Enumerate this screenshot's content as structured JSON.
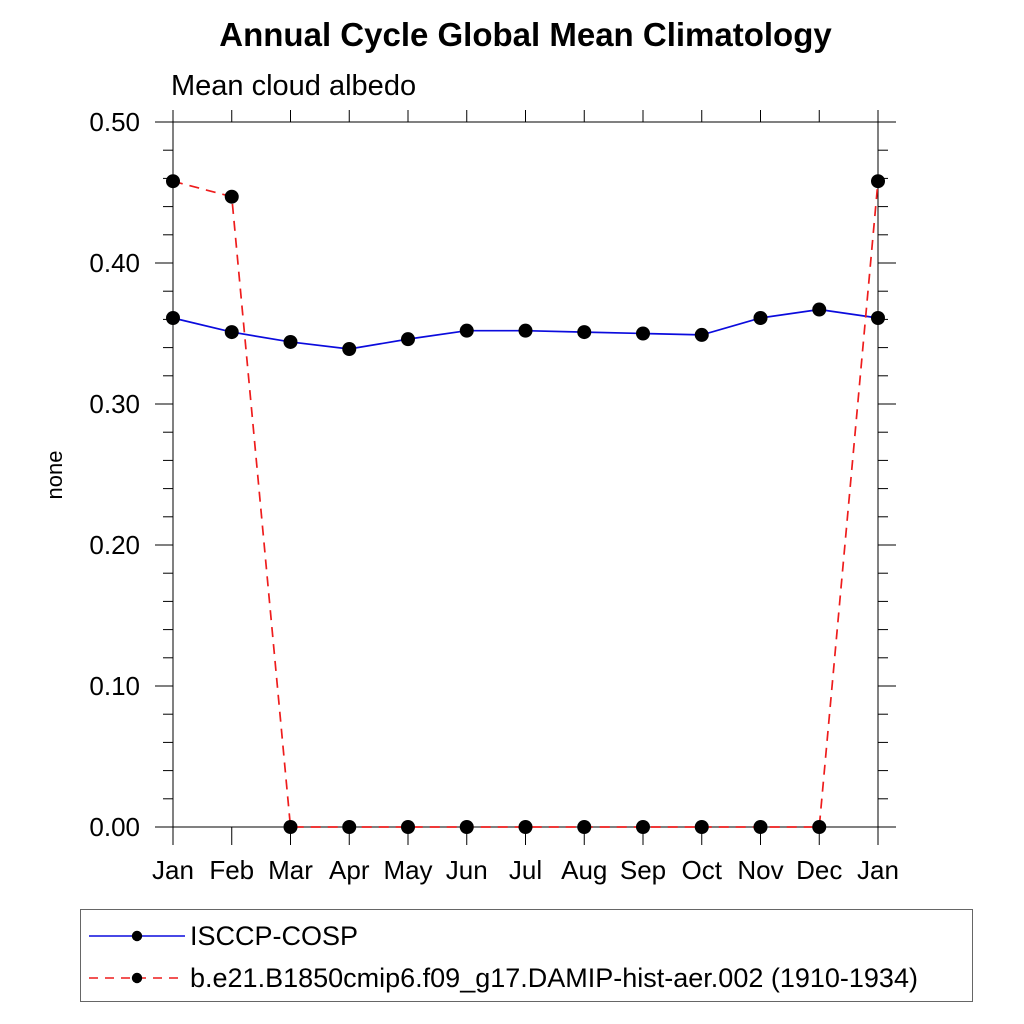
{
  "chart_data": {
    "type": "line",
    "title": "Annual Cycle Global Mean Climatology",
    "subtitle": "Mean cloud albedo",
    "ylabel": "none",
    "xlabel": "",
    "categories": [
      "Jan",
      "Feb",
      "Mar",
      "Apr",
      "May",
      "Jun",
      "Jul",
      "Aug",
      "Sep",
      "Oct",
      "Nov",
      "Dec",
      "Jan"
    ],
    "ylim": [
      0.0,
      0.5
    ],
    "ytick_major": [
      0.0,
      0.1,
      0.2,
      0.3,
      0.4,
      0.5
    ],
    "ytick_labels": [
      "0.00",
      "0.10",
      "0.20",
      "0.30",
      "0.40",
      "0.50"
    ],
    "ytick_minor_step": 0.02,
    "grid": false,
    "legend_position": "bottom-left",
    "series": [
      {
        "name": "ISCCP-COSP",
        "color": "#0b0bdd",
        "style": "solid",
        "marker": "circle",
        "marker_color": "#000000",
        "values": [
          0.361,
          0.351,
          0.344,
          0.339,
          0.346,
          0.352,
          0.352,
          0.351,
          0.35,
          0.349,
          0.361,
          0.367,
          0.361
        ]
      },
      {
        "name": "b.e21.B1850cmip6.f09_g17.DAMIP-hist-aer.002 (1910-1934)",
        "color": "#ee1c1c",
        "style": "dashed",
        "marker": "circle",
        "marker_color": "#000000",
        "values": [
          0.458,
          0.447,
          0.0,
          0.0,
          0.0,
          0.0,
          0.0,
          0.0,
          0.0,
          0.0,
          0.0,
          0.0,
          0.458
        ]
      }
    ],
    "axis_color": "#000000",
    "background_color": "#ffffff"
  }
}
